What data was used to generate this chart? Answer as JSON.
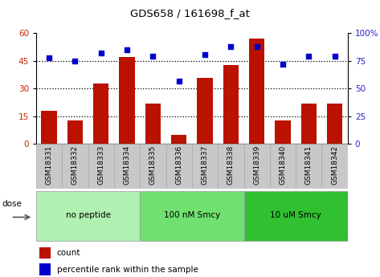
{
  "title": "GDS658 / 161698_f_at",
  "samples": [
    "GSM18331",
    "GSM18332",
    "GSM18333",
    "GSM18334",
    "GSM18335",
    "GSM18336",
    "GSM18337",
    "GSM18338",
    "GSM18339",
    "GSM18340",
    "GSM18341",
    "GSM18342"
  ],
  "counts": [
    18,
    13,
    33,
    47,
    22,
    5,
    36,
    43,
    57,
    13,
    22,
    22
  ],
  "percentiles": [
    78,
    75,
    82,
    85,
    79,
    57,
    81,
    88,
    88,
    72,
    79,
    79
  ],
  "groups": [
    {
      "label": "no peptide",
      "start": 0,
      "end": 4,
      "color": "#b0f0b0"
    },
    {
      "label": "100 nM Smcy",
      "start": 4,
      "end": 8,
      "color": "#70e070"
    },
    {
      "label": "10 uM Smcy",
      "start": 8,
      "end": 12,
      "color": "#30c030"
    }
  ],
  "ylim_left": [
    0,
    60
  ],
  "ylim_right": [
    0,
    100
  ],
  "yticks_left": [
    0,
    15,
    30,
    45,
    60
  ],
  "yticks_right": [
    0,
    25,
    50,
    75,
    100
  ],
  "bar_color": "#bb1100",
  "dot_color": "#0000cc",
  "left_axis_color": "#cc2200",
  "right_axis_color": "#2222cc",
  "legend_count_color": "#bb1100",
  "legend_pct_color": "#0000cc",
  "tick_label_bg": "#c8c8c8",
  "tick_label_border": "#aaaaaa"
}
